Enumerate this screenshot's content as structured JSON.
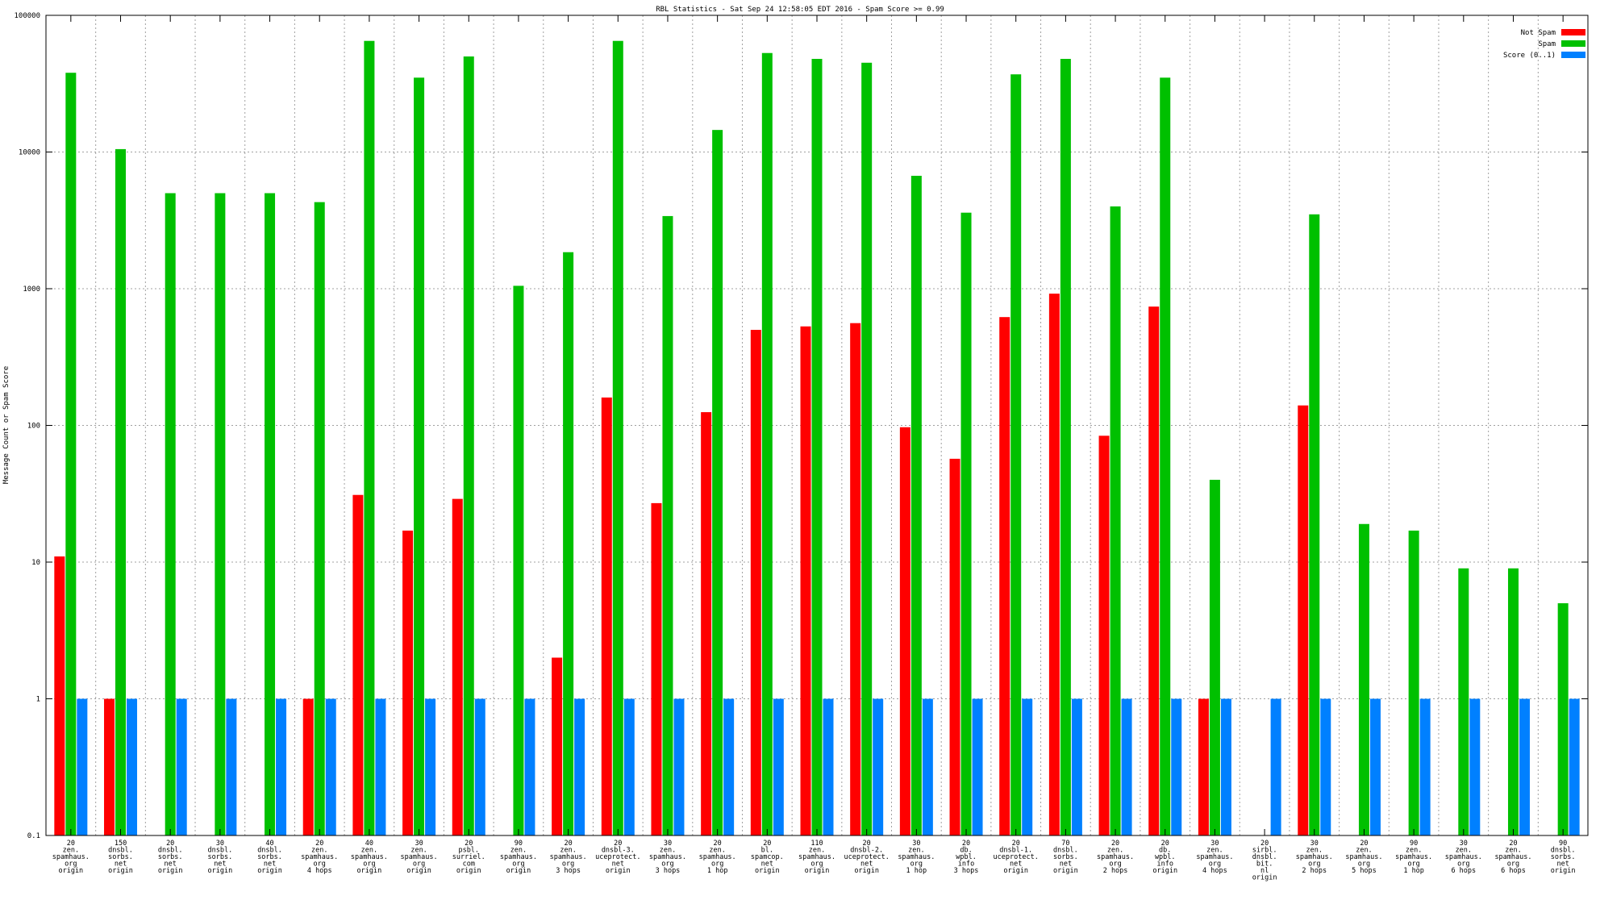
{
  "chart_data": {
    "type": "bar",
    "title": "RBL Statistics - Sat Sep 24 12:58:05 EDT 2016 - Spam Score >= 0.99",
    "xlabel": "",
    "ylabel": "Message Count or Spam Score",
    "yscale": "log",
    "ylim": [
      0.1,
      100000
    ],
    "yticks": [
      "0.1",
      "1",
      "10",
      "100",
      "1000",
      "10000",
      "100000"
    ],
    "grid": true,
    "legend_position": "top-right",
    "categories": [
      [
        "20",
        "zen.",
        "spamhaus.",
        "org",
        "origin"
      ],
      [
        "150",
        "dnsbl.",
        "sorbs.",
        "net",
        "origin"
      ],
      [
        "20",
        "dnsbl.",
        "sorbs.",
        "net",
        "origin"
      ],
      [
        "30",
        "dnsbl.",
        "sorbs.",
        "net",
        "origin"
      ],
      [
        "40",
        "dnsbl.",
        "sorbs.",
        "net",
        "origin"
      ],
      [
        "20",
        "zen.",
        "spamhaus.",
        "org",
        "4 hops"
      ],
      [
        "40",
        "zen.",
        "spamhaus.",
        "org",
        "origin"
      ],
      [
        "30",
        "zen.",
        "spamhaus.",
        "org",
        "origin"
      ],
      [
        "20",
        "psbl.",
        "surriel.",
        "com",
        "origin"
      ],
      [
        "90",
        "zen.",
        "spamhaus.",
        "org",
        "origin"
      ],
      [
        "20",
        "zen.",
        "spamhaus.",
        "org",
        "3 hops"
      ],
      [
        "20",
        "dnsbl-3.",
        "uceprotect.",
        "net",
        "origin"
      ],
      [
        "30",
        "zen.",
        "spamhaus.",
        "org",
        "3 hops"
      ],
      [
        "20",
        "zen.",
        "spamhaus.",
        "org",
        "1 hop"
      ],
      [
        "20",
        "bl.",
        "spamcop.",
        "net",
        "origin"
      ],
      [
        "110",
        "zen.",
        "spamhaus.",
        "org",
        "origin"
      ],
      [
        "20",
        "dnsbl-2.",
        "uceprotect.",
        "net",
        "origin"
      ],
      [
        "30",
        "zen.",
        "spamhaus.",
        "org",
        "1 hop"
      ],
      [
        "20",
        "db.",
        "wpbl.",
        "info",
        "3 hops"
      ],
      [
        "20",
        "dnsbl-1.",
        "uceprotect.",
        "net",
        "origin"
      ],
      [
        "70",
        "dnsbl.",
        "sorbs.",
        "net",
        "origin"
      ],
      [
        "20",
        "zen.",
        "spamhaus.",
        "org",
        "2 hops"
      ],
      [
        "20",
        "db.",
        "wpbl.",
        "info",
        "origin"
      ],
      [
        "30",
        "zen.",
        "spamhaus.",
        "org",
        "4 hops"
      ],
      [
        "20",
        "sirbl.",
        "dnsbl.",
        "bit.",
        "nl",
        "origin"
      ],
      [
        "30",
        "zen.",
        "spamhaus.",
        "org",
        "2 hops"
      ],
      [
        "20",
        "zen.",
        "spamhaus.",
        "org",
        "5 hops"
      ],
      [
        "90",
        "zen.",
        "spamhaus.",
        "org",
        "1 hop"
      ],
      [
        "30",
        "zen.",
        "spamhaus.",
        "org",
        "6 hops"
      ],
      [
        "20",
        "zen.",
        "spamhaus.",
        "org",
        "6 hops"
      ],
      [
        "90",
        "dnsbl.",
        "sorbs.",
        "net",
        "origin"
      ]
    ],
    "series": [
      {
        "name": "Not Spam",
        "color": "#ff0000",
        "values": [
          11,
          1,
          null,
          null,
          null,
          1,
          31,
          17,
          29,
          null,
          2,
          160,
          27,
          125,
          500,
          530,
          560,
          97,
          57,
          620,
          920,
          84,
          740,
          1,
          null,
          140,
          null,
          null,
          null,
          null,
          null
        ]
      },
      {
        "name": "Spam",
        "color": "#00c000",
        "values": [
          38000,
          10500,
          5000,
          5000,
          5000,
          4300,
          65000,
          35000,
          50000,
          1050,
          1850,
          65000,
          3400,
          14500,
          53000,
          48000,
          45000,
          6700,
          3600,
          37000,
          48000,
          4000,
          35000,
          40,
          null,
          3500,
          19,
          17,
          9,
          9,
          5
        ]
      },
      {
        "name": "Score (0..1)",
        "color": "#0080ff",
        "values": [
          1,
          1,
          1,
          1,
          1,
          1,
          1,
          1,
          1,
          1,
          1,
          1,
          1,
          1,
          1,
          1,
          1,
          1,
          1,
          1,
          1,
          1,
          1,
          1,
          1,
          1,
          1,
          1,
          1,
          1,
          1
        ]
      }
    ]
  }
}
